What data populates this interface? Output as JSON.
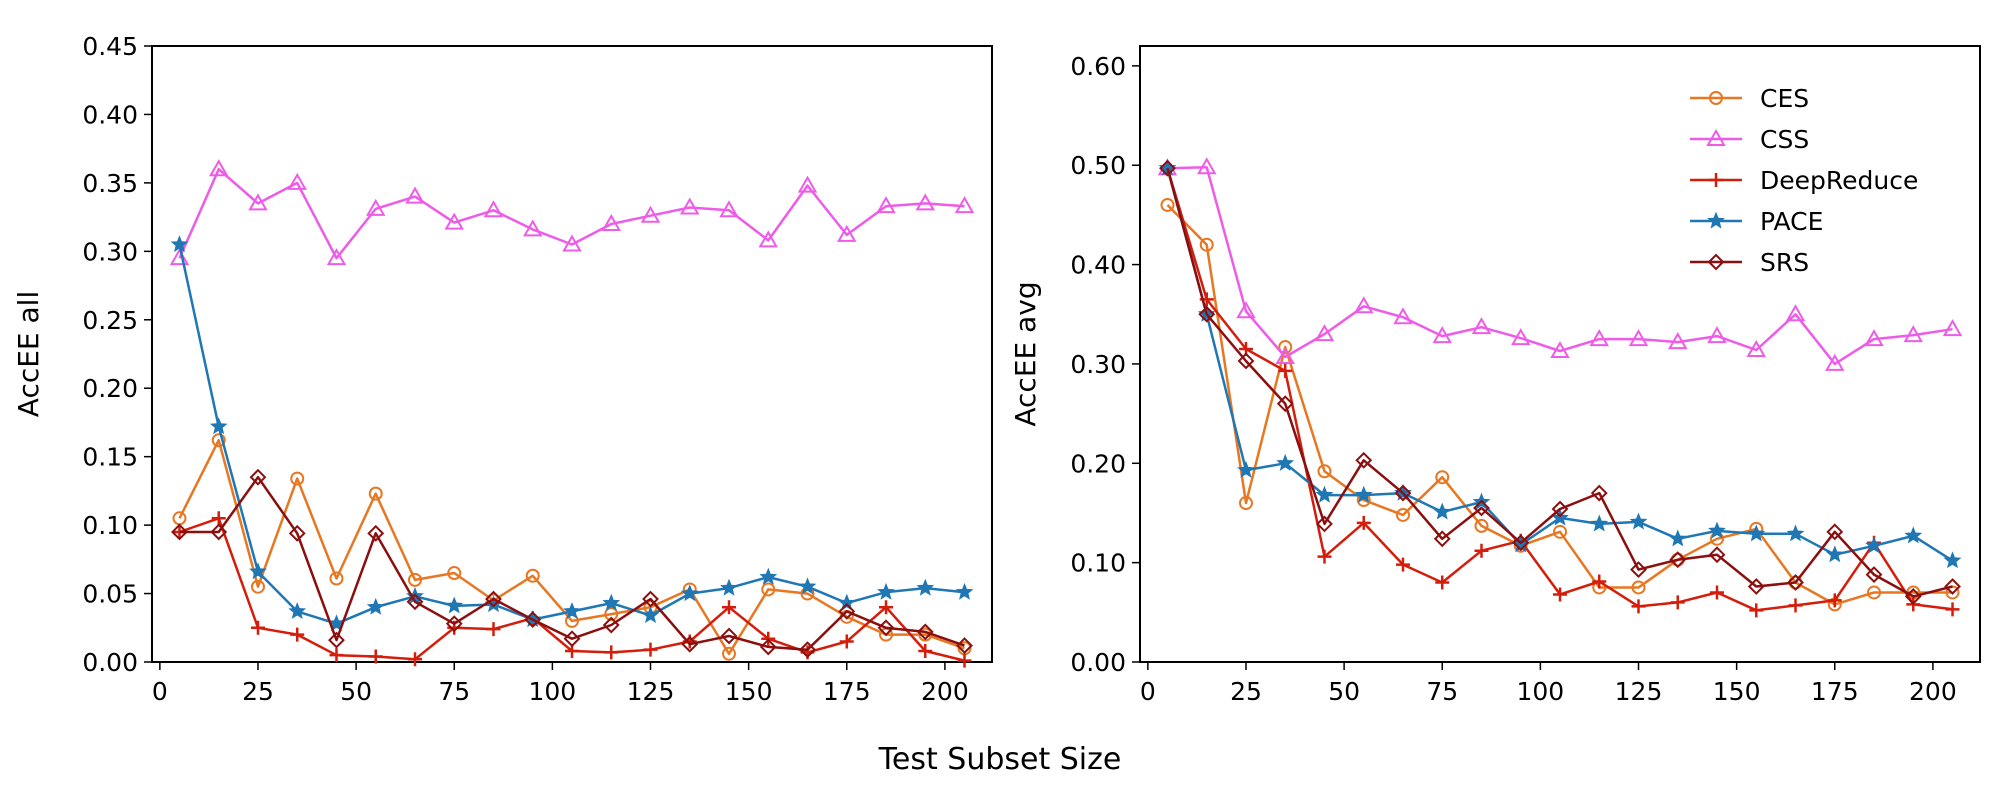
{
  "figure": {
    "shared_xlabel": "Test Subset Size"
  },
  "series_styles": [
    {
      "name": "CES",
      "color": "#e87722",
      "marker": "circle"
    },
    {
      "name": "CSS",
      "color": "#ee5be8",
      "marker": "triangle"
    },
    {
      "name": "DeepReduce",
      "color": "#d41d0b",
      "marker": "plus"
    },
    {
      "name": "PACE",
      "color": "#1f77b4",
      "marker": "star"
    },
    {
      "name": "SRS",
      "color": "#8b0f0f",
      "marker": "diamond"
    }
  ],
  "chart_data": [
    {
      "type": "line",
      "title": "",
      "xlabel": "",
      "ylabel": "AccEE all",
      "xlim": [
        -2,
        212
      ],
      "ylim": [
        0,
        0.45
      ],
      "xticks": [
        "0",
        "25",
        "50",
        "75",
        "100",
        "125",
        "150",
        "175",
        "200"
      ],
      "xtick_values": [
        0,
        25,
        50,
        75,
        100,
        125,
        150,
        175,
        200
      ],
      "yticks": [
        "0.00",
        "0.05",
        "0.10",
        "0.15",
        "0.20",
        "0.25",
        "0.30",
        "0.35",
        "0.40",
        "0.45"
      ],
      "ytick_values": [
        0,
        0.05,
        0.1,
        0.15,
        0.2,
        0.25,
        0.3,
        0.35,
        0.4,
        0.45
      ],
      "grid": false,
      "legend": null,
      "x": [
        5,
        15,
        25,
        35,
        45,
        55,
        65,
        75,
        85,
        95,
        105,
        115,
        125,
        135,
        145,
        155,
        165,
        175,
        185,
        195,
        205
      ],
      "series": [
        {
          "name": "CES",
          "values": [
            0.105,
            0.162,
            0.055,
            0.134,
            0.061,
            0.123,
            0.06,
            0.065,
            0.045,
            0.063,
            0.03,
            0.035,
            0.04,
            0.053,
            0.006,
            0.053,
            0.05,
            0.033,
            0.02,
            0.02,
            0.01
          ]
        },
        {
          "name": "CSS",
          "values": [
            0.295,
            0.36,
            0.335,
            0.35,
            0.295,
            0.331,
            0.34,
            0.321,
            0.33,
            0.316,
            0.305,
            0.32,
            0.326,
            0.332,
            0.33,
            0.308,
            0.348,
            0.312,
            0.333,
            0.335,
            0.333
          ]
        },
        {
          "name": "DeepReduce",
          "values": [
            0.095,
            0.105,
            0.025,
            0.02,
            0.005,
            0.004,
            0.002,
            0.025,
            0.024,
            0.032,
            0.008,
            0.007,
            0.009,
            0.015,
            0.04,
            0.017,
            0.007,
            0.015,
            0.04,
            0.008,
            0.001
          ]
        },
        {
          "name": "PACE",
          "values": [
            0.305,
            0.172,
            0.066,
            0.037,
            0.028,
            0.04,
            0.048,
            0.041,
            0.042,
            0.031,
            0.037,
            0.043,
            0.034,
            0.05,
            0.054,
            0.062,
            0.055,
            0.043,
            0.051,
            0.054,
            0.051
          ]
        },
        {
          "name": "SRS",
          "values": [
            0.095,
            0.095,
            0.135,
            0.094,
            0.016,
            0.094,
            0.044,
            0.028,
            0.046,
            0.031,
            0.017,
            0.027,
            0.046,
            0.013,
            0.019,
            0.011,
            0.009,
            0.037,
            0.025,
            0.022,
            0.012
          ]
        }
      ]
    },
    {
      "type": "line",
      "title": "",
      "xlabel": "",
      "ylabel": "AccEE avg",
      "xlim": [
        -2,
        212
      ],
      "ylim": [
        0,
        0.62
      ],
      "xticks": [
        "0",
        "25",
        "50",
        "75",
        "100",
        "125",
        "150",
        "175",
        "200"
      ],
      "xtick_values": [
        0,
        25,
        50,
        75,
        100,
        125,
        150,
        175,
        200
      ],
      "yticks": [
        "0.00",
        "0.10",
        "0.20",
        "0.30",
        "0.40",
        "0.50",
        "0.60"
      ],
      "ytick_values": [
        0,
        0.1,
        0.2,
        0.3,
        0.4,
        0.5,
        0.6
      ],
      "grid": false,
      "legend": "top-right",
      "x": [
        5,
        15,
        25,
        35,
        45,
        55,
        65,
        75,
        85,
        95,
        105,
        115,
        125,
        135,
        145,
        155,
        165,
        175,
        185,
        195,
        205
      ],
      "series": [
        {
          "name": "CES",
          "values": [
            0.46,
            0.42,
            0.16,
            0.317,
            0.192,
            0.163,
            0.148,
            0.186,
            0.137,
            0.117,
            0.131,
            0.075,
            0.075,
            0.103,
            0.124,
            0.134,
            0.08,
            0.058,
            0.07,
            0.07,
            0.07
          ]
        },
        {
          "name": "CSS",
          "values": [
            0.497,
            0.498,
            0.353,
            0.307,
            0.33,
            0.358,
            0.347,
            0.328,
            0.337,
            0.326,
            0.313,
            0.325,
            0.325,
            0.322,
            0.328,
            0.314,
            0.35,
            0.3,
            0.325,
            0.329,
            0.335
          ]
        },
        {
          "name": "DeepReduce",
          "values": [
            0.497,
            0.365,
            0.315,
            0.293,
            0.106,
            0.14,
            0.098,
            0.08,
            0.112,
            0.122,
            0.068,
            0.081,
            0.056,
            0.06,
            0.07,
            0.052,
            0.057,
            0.062,
            0.12,
            0.058,
            0.053
          ]
        },
        {
          "name": "PACE",
          "values": [
            0.497,
            0.35,
            0.193,
            0.2,
            0.168,
            0.168,
            0.17,
            0.151,
            0.161,
            0.118,
            0.145,
            0.139,
            0.141,
            0.124,
            0.132,
            0.129,
            0.129,
            0.108,
            0.117,
            0.127,
            0.102
          ]
        },
        {
          "name": "SRS",
          "values": [
            0.497,
            0.35,
            0.303,
            0.26,
            0.139,
            0.203,
            0.17,
            0.124,
            0.155,
            0.12,
            0.154,
            0.17,
            0.093,
            0.103,
            0.108,
            0.076,
            0.08,
            0.131,
            0.088,
            0.066,
            0.076
          ]
        }
      ]
    }
  ]
}
